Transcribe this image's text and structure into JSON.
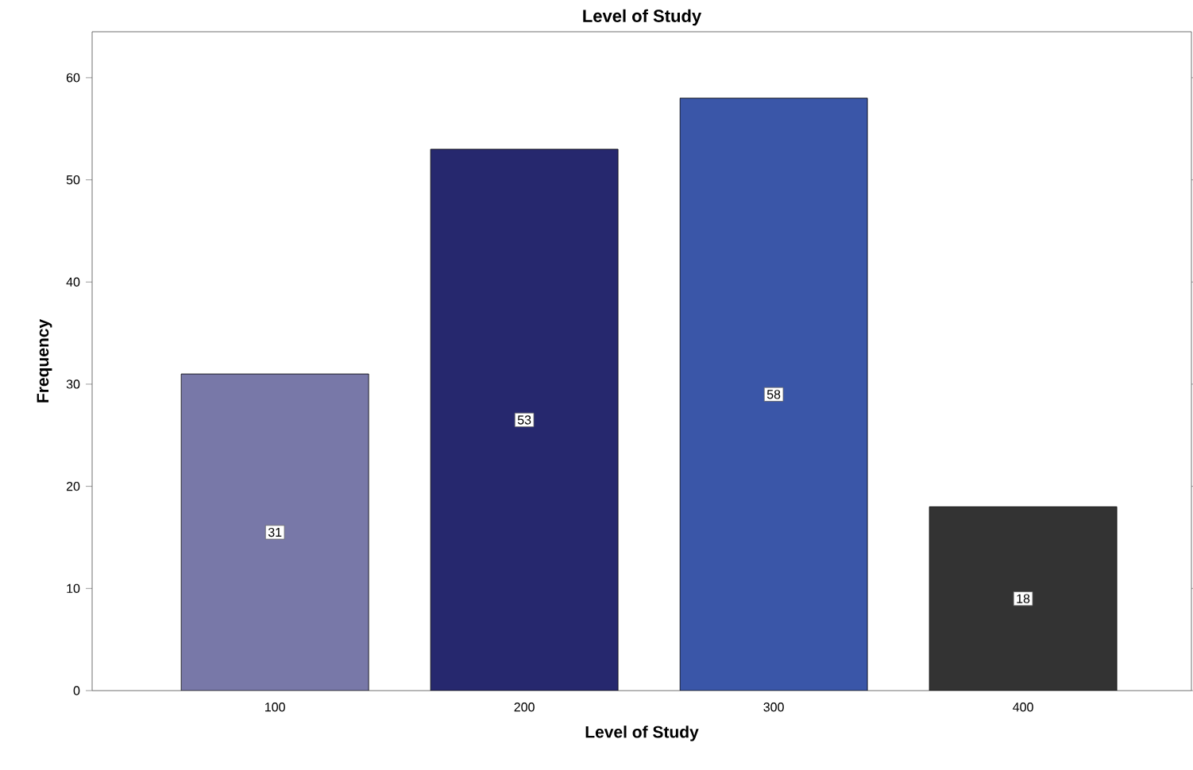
{
  "chart_data": {
    "type": "bar",
    "title": "Level of Study",
    "xlabel": "Level of Study",
    "ylabel": "Frequency",
    "categories": [
      "100",
      "200",
      "300",
      "400"
    ],
    "values": [
      31,
      53,
      58,
      18
    ],
    "colors": [
      "#7878a8",
      "#26286e",
      "#3a56a8",
      "#333333"
    ],
    "ylim": [
      0,
      64.5
    ],
    "yticks": [
      0,
      10,
      20,
      30,
      40,
      50,
      60
    ],
    "grid": false,
    "data_labels": true
  }
}
